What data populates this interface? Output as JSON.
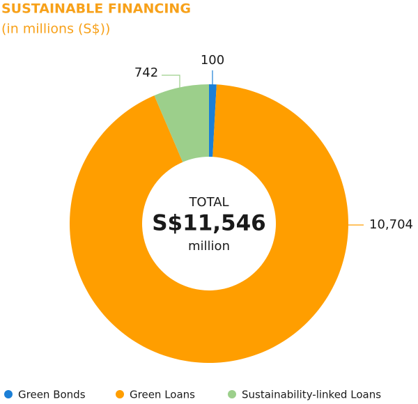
{
  "chart_data": {
    "type": "donut",
    "title": "SUSTAINABLE FINANCING",
    "subtitle": "(in millions (S$))",
    "categories": [
      "Green Bonds",
      "Green Loans",
      "Sustainability-linked Loans"
    ],
    "values": [
      100,
      10704,
      742
    ],
    "value_labels": [
      "100",
      "10,704",
      "742"
    ],
    "colors": [
      "#1b7fd6",
      "#ff9e00",
      "#9ccf8b"
    ],
    "center_label": "TOTAL",
    "center_value": "S$11,546",
    "center_unit": "million"
  }
}
